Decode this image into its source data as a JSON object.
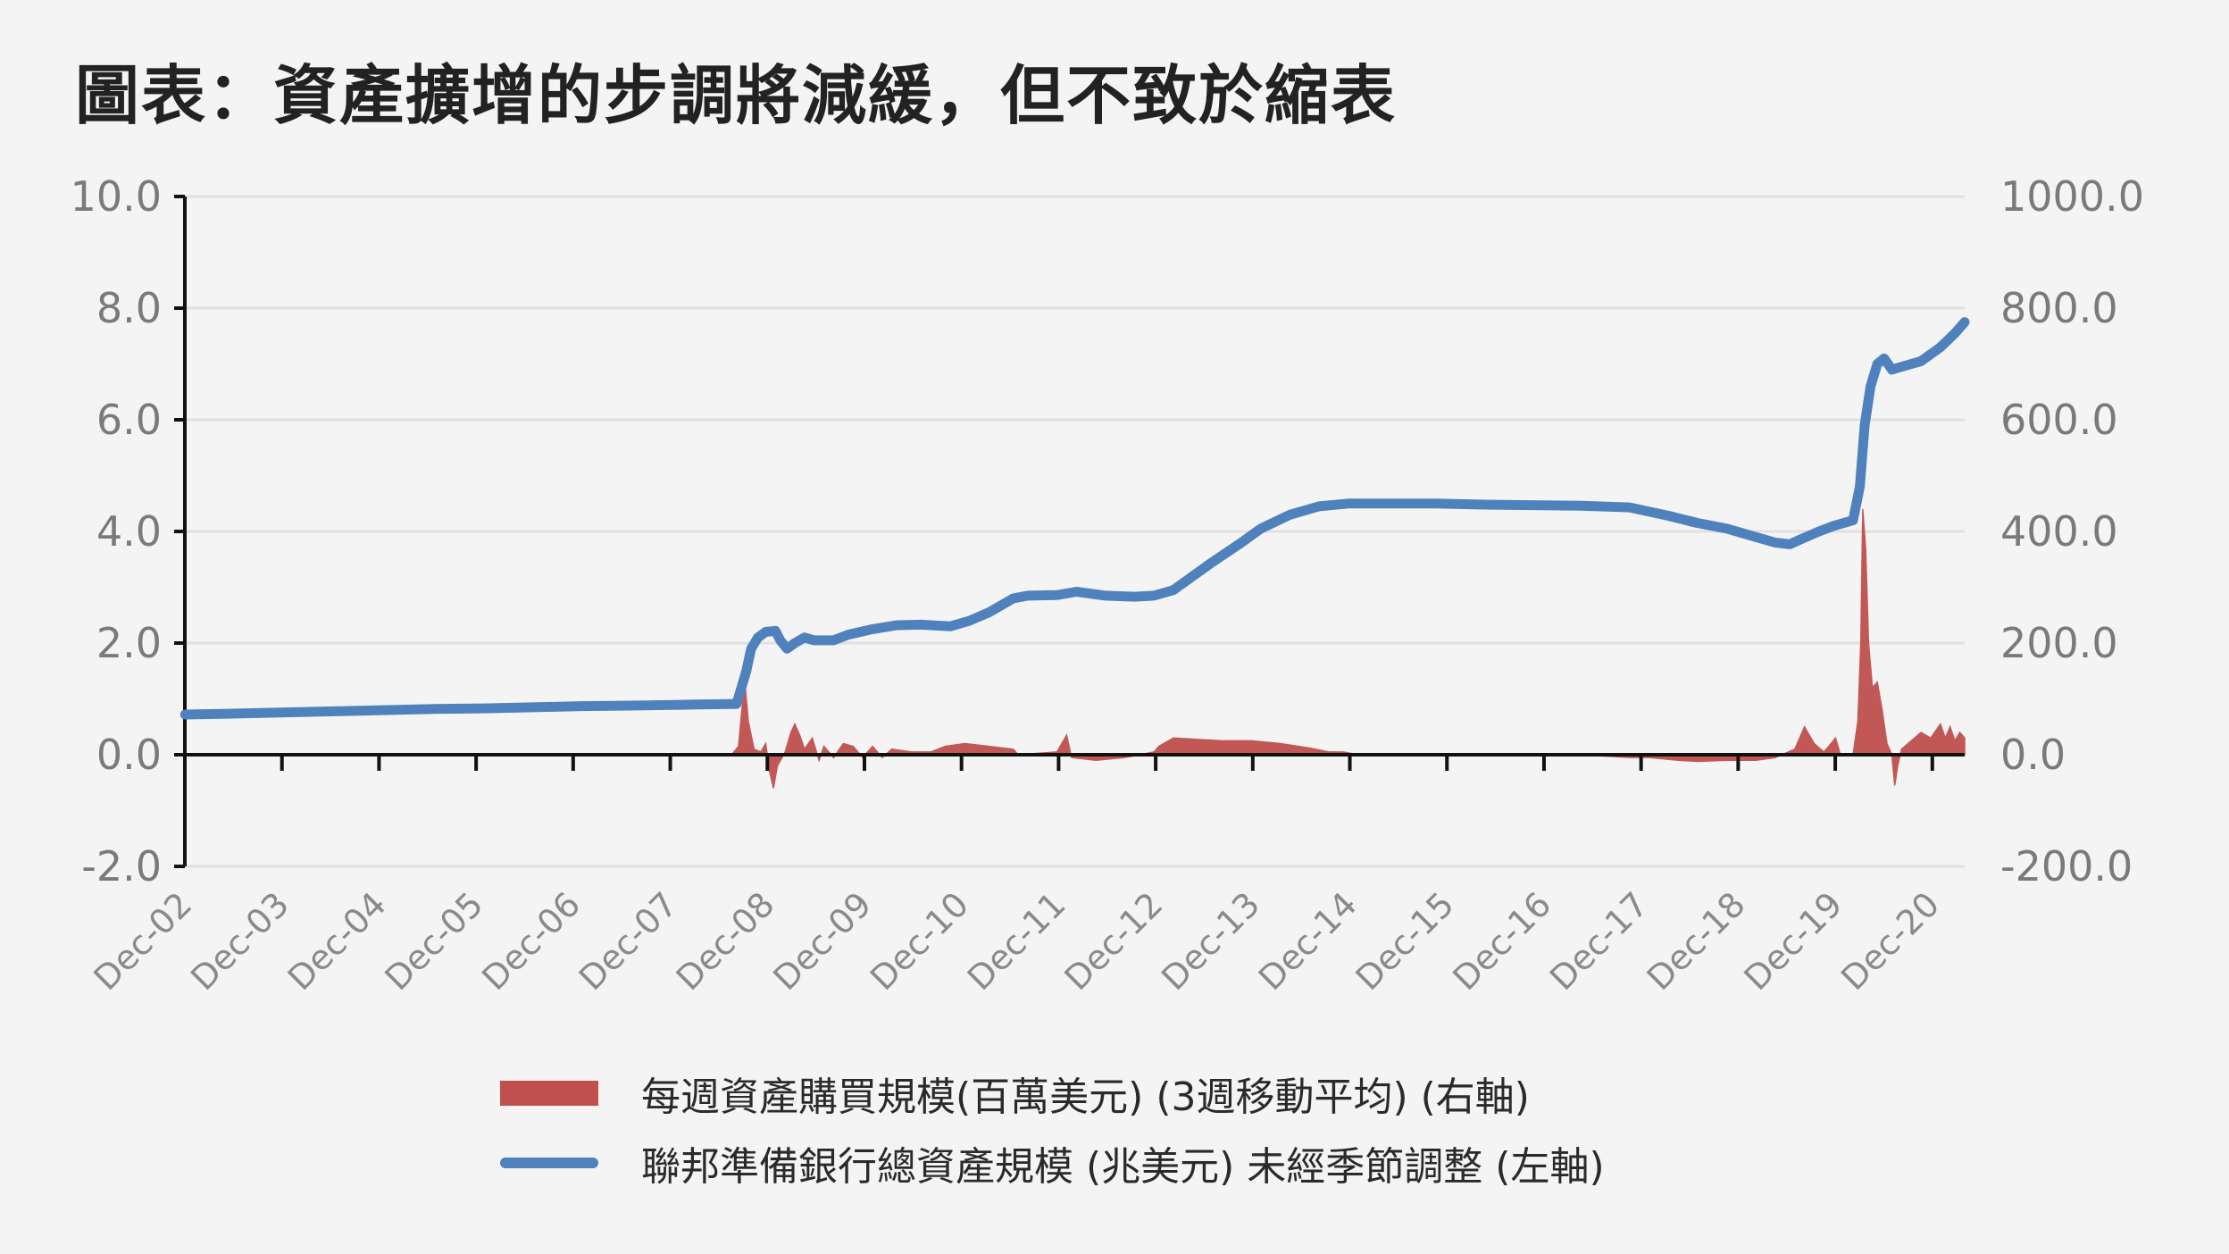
{
  "title": "圖表：資產擴增的步調將減緩，但不致於縮表",
  "chart_data": {
    "type": "line",
    "x_ticks": [
      "Dec-02",
      "Dec-03",
      "Dec-04",
      "Dec-05",
      "Dec-06",
      "Dec-07",
      "Dec-08",
      "Dec-09",
      "Dec-10",
      "Dec-11",
      "Dec-12",
      "Dec-13",
      "Dec-14",
      "Dec-15",
      "Dec-16",
      "Dec-17",
      "Dec-18",
      "Dec-19",
      "Dec-20"
    ],
    "x_range": [
      2002.917,
      2021.25
    ],
    "left_axis": {
      "ticks": [
        "10.0",
        "8.0",
        "6.0",
        "4.0",
        "2.0",
        "0.0",
        "-2.0"
      ],
      "ylim": [
        -2,
        10
      ]
    },
    "right_axis": {
      "ticks": [
        "1000.0",
        "800.0",
        "600.0",
        "400.0",
        "200.0",
        "0.0",
        "-200.0"
      ],
      "ylim": [
        -200,
        1000
      ]
    },
    "grid": true,
    "legend_position": "bottom",
    "series": [
      {
        "name": "每週資產購買規模(百萬美元) (3週移動平均) (右軸)",
        "kind": "area",
        "axis": "right",
        "color": "#c0504d",
        "points": [
          [
            2002.92,
            0
          ],
          [
            2007.5,
            0
          ],
          [
            2008.55,
            0
          ],
          [
            2008.62,
            15
          ],
          [
            2008.66,
            90
          ],
          [
            2008.68,
            140
          ],
          [
            2008.72,
            60
          ],
          [
            2008.78,
            10
          ],
          [
            2008.85,
            5
          ],
          [
            2008.9,
            20
          ],
          [
            2008.94,
            -30
          ],
          [
            2008.98,
            -60
          ],
          [
            2009.02,
            -20
          ],
          [
            2009.1,
            5
          ],
          [
            2009.16,
            40
          ],
          [
            2009.2,
            55
          ],
          [
            2009.25,
            35
          ],
          [
            2009.3,
            10
          ],
          [
            2009.38,
            30
          ],
          [
            2009.45,
            -10
          ],
          [
            2009.5,
            15
          ],
          [
            2009.6,
            -5
          ],
          [
            2009.7,
            20
          ],
          [
            2009.8,
            15
          ],
          [
            2009.9,
            -5
          ],
          [
            2010.0,
            15
          ],
          [
            2010.1,
            -5
          ],
          [
            2010.2,
            10
          ],
          [
            2010.4,
            5
          ],
          [
            2010.6,
            5
          ],
          [
            2010.75,
            15
          ],
          [
            2010.95,
            20
          ],
          [
            2011.2,
            15
          ],
          [
            2011.45,
            10
          ],
          [
            2011.5,
            0
          ],
          [
            2011.9,
            5
          ],
          [
            2012.0,
            35
          ],
          [
            2012.05,
            -5
          ],
          [
            2012.3,
            -10
          ],
          [
            2012.6,
            -5
          ],
          [
            2012.9,
            5
          ],
          [
            2012.95,
            15
          ],
          [
            2013.1,
            30
          ],
          [
            2013.3,
            28
          ],
          [
            2013.6,
            25
          ],
          [
            2013.9,
            25
          ],
          [
            2014.2,
            20
          ],
          [
            2014.5,
            12
          ],
          [
            2014.7,
            5
          ],
          [
            2014.85,
            5
          ],
          [
            2015.0,
            0
          ],
          [
            2015.8,
            0
          ],
          [
            2016.5,
            0
          ],
          [
            2017.3,
            0
          ],
          [
            2017.8,
            -5
          ],
          [
            2018.0,
            -5
          ],
          [
            2018.3,
            -10
          ],
          [
            2018.5,
            -12
          ],
          [
            2018.8,
            -10
          ],
          [
            2019.1,
            -10
          ],
          [
            2019.3,
            -5
          ],
          [
            2019.5,
            10
          ],
          [
            2019.6,
            50
          ],
          [
            2019.7,
            20
          ],
          [
            2019.8,
            5
          ],
          [
            2019.85,
            15
          ],
          [
            2019.92,
            30
          ],
          [
            2019.97,
            0
          ],
          [
            2020.1,
            0
          ],
          [
            2020.15,
            60
          ],
          [
            2020.18,
            200
          ],
          [
            2020.2,
            440
          ],
          [
            2020.23,
            370
          ],
          [
            2020.26,
            200
          ],
          [
            2020.3,
            120
          ],
          [
            2020.35,
            130
          ],
          [
            2020.4,
            80
          ],
          [
            2020.45,
            20
          ],
          [
            2020.5,
            0
          ],
          [
            2020.53,
            -55
          ],
          [
            2020.56,
            -20
          ],
          [
            2020.6,
            10
          ],
          [
            2020.7,
            25
          ],
          [
            2020.8,
            40
          ],
          [
            2020.9,
            30
          ],
          [
            2021.0,
            55
          ],
          [
            2021.05,
            30
          ],
          [
            2021.1,
            50
          ],
          [
            2021.15,
            25
          ],
          [
            2021.2,
            40
          ],
          [
            2021.25,
            30
          ]
        ]
      },
      {
        "name": "聯邦準備銀行總資產規模 (兆美元) 未經季節調整 (左軸)",
        "kind": "line",
        "axis": "left",
        "color": "#4f81bd",
        "points": [
          [
            2002.92,
            0.72
          ],
          [
            2003.5,
            0.74
          ],
          [
            2004.0,
            0.76
          ],
          [
            2004.5,
            0.78
          ],
          [
            2005.0,
            0.8
          ],
          [
            2005.5,
            0.82
          ],
          [
            2006.0,
            0.83
          ],
          [
            2006.5,
            0.85
          ],
          [
            2007.0,
            0.87
          ],
          [
            2007.5,
            0.88
          ],
          [
            2008.2,
            0.9
          ],
          [
            2008.6,
            0.91
          ],
          [
            2008.7,
            1.5
          ],
          [
            2008.75,
            1.9
          ],
          [
            2008.82,
            2.1
          ],
          [
            2008.9,
            2.2
          ],
          [
            2009.0,
            2.22
          ],
          [
            2009.05,
            2.05
          ],
          [
            2009.12,
            1.9
          ],
          [
            2009.2,
            2.0
          ],
          [
            2009.3,
            2.1
          ],
          [
            2009.4,
            2.05
          ],
          [
            2009.6,
            2.05
          ],
          [
            2009.75,
            2.15
          ],
          [
            2010.0,
            2.25
          ],
          [
            2010.25,
            2.32
          ],
          [
            2010.5,
            2.33
          ],
          [
            2010.8,
            2.3
          ],
          [
            2011.0,
            2.4
          ],
          [
            2011.2,
            2.55
          ],
          [
            2011.45,
            2.8
          ],
          [
            2011.6,
            2.85
          ],
          [
            2011.9,
            2.86
          ],
          [
            2012.1,
            2.92
          ],
          [
            2012.4,
            2.85
          ],
          [
            2012.7,
            2.83
          ],
          [
            2012.9,
            2.85
          ],
          [
            2013.1,
            2.95
          ],
          [
            2013.3,
            3.2
          ],
          [
            2013.5,
            3.45
          ],
          [
            2013.8,
            3.8
          ],
          [
            2014.0,
            4.05
          ],
          [
            2014.3,
            4.3
          ],
          [
            2014.6,
            4.45
          ],
          [
            2014.9,
            4.5
          ],
          [
            2015.3,
            4.5
          ],
          [
            2015.8,
            4.5
          ],
          [
            2016.3,
            4.48
          ],
          [
            2016.8,
            4.47
          ],
          [
            2017.3,
            4.46
          ],
          [
            2017.8,
            4.43
          ],
          [
            2018.2,
            4.28
          ],
          [
            2018.5,
            4.15
          ],
          [
            2018.8,
            4.05
          ],
          [
            2019.1,
            3.9
          ],
          [
            2019.3,
            3.8
          ],
          [
            2019.45,
            3.77
          ],
          [
            2019.55,
            3.85
          ],
          [
            2019.75,
            4.0
          ],
          [
            2019.9,
            4.1
          ],
          [
            2020.1,
            4.2
          ],
          [
            2020.17,
            4.8
          ],
          [
            2020.22,
            5.9
          ],
          [
            2020.28,
            6.6
          ],
          [
            2020.35,
            7.0
          ],
          [
            2020.42,
            7.1
          ],
          [
            2020.5,
            6.9
          ],
          [
            2020.6,
            6.95
          ],
          [
            2020.8,
            7.05
          ],
          [
            2021.0,
            7.3
          ],
          [
            2021.15,
            7.55
          ],
          [
            2021.25,
            7.75
          ]
        ]
      }
    ]
  },
  "legend": [
    {
      "label": "每週資產購買規模(百萬美元) (3週移動平均) (右軸)"
    },
    {
      "label": "聯邦準備銀行總資產規模 (兆美元) 未經季節調整 (左軸)"
    }
  ]
}
